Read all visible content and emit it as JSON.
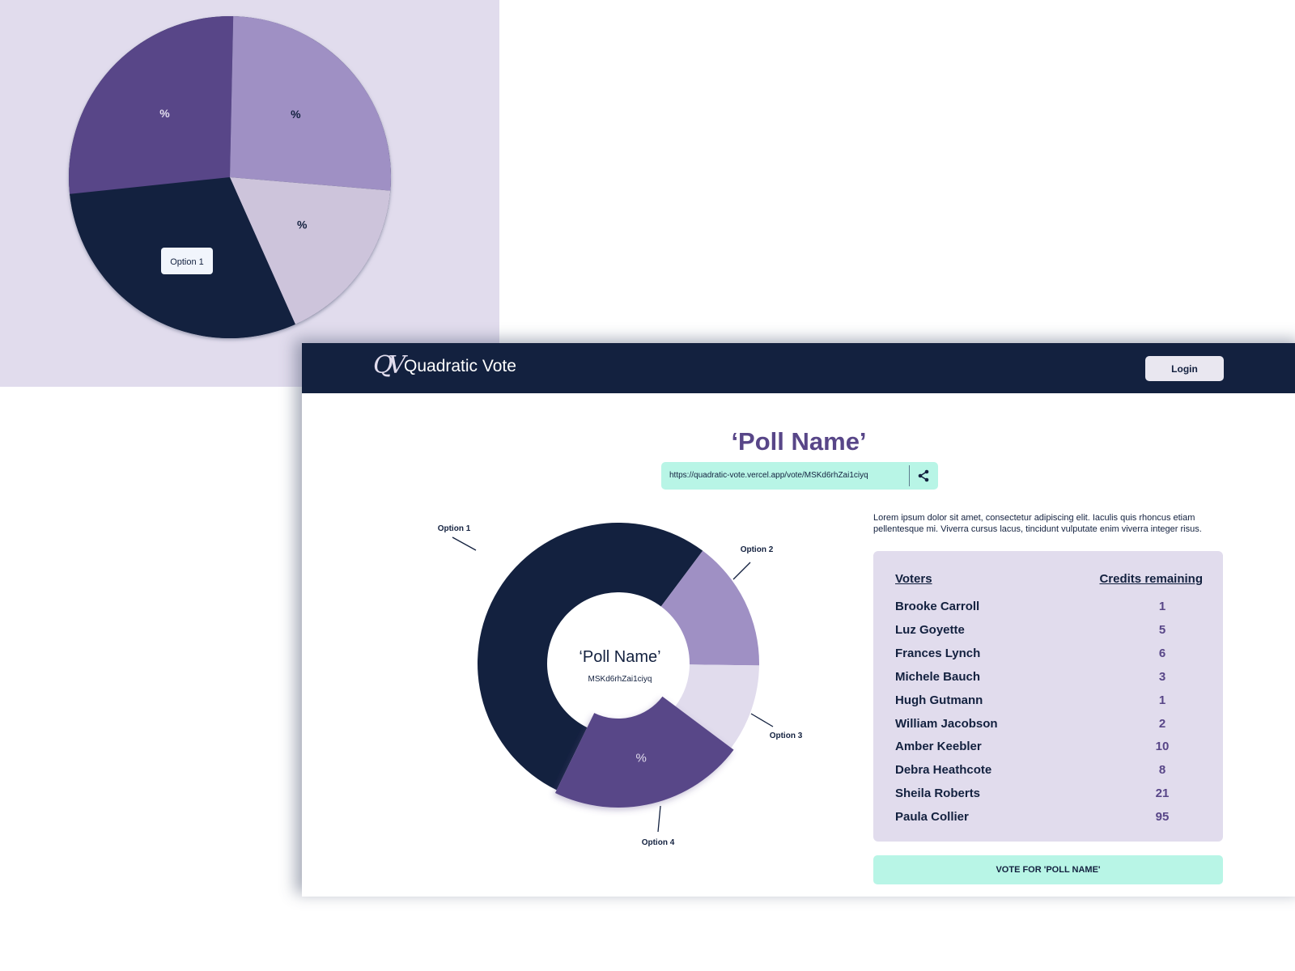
{
  "colors": {
    "dark": "#13213f",
    "purple": "#584688",
    "lavender": "#9f90c4",
    "pale": "#cdc4db",
    "light": "#e1dced",
    "mint": "#b8f5e6"
  },
  "header": {
    "logo": "QV",
    "brand": "Quadratic Vote",
    "login_label": "Login"
  },
  "poll": {
    "title": "‘Poll Name’",
    "url": "https://quadratic-vote.vercel.app/vote/MSKd6rhZai1ciyq",
    "share_icon": "share-icon",
    "id": "MSKd6rhZai1ciyq"
  },
  "description": "Lorem ipsum dolor sit amet, consectetur adipiscing elit. Iaculis quis rhoncus etiam pellentesque mi. Viverra cursus lacus, tincidunt vulputate enim viverra integer risus.",
  "voters": {
    "header_name": "Voters",
    "header_credits": "Credits remaining",
    "rows": [
      {
        "name": "Brooke Carroll",
        "credits": "1"
      },
      {
        "name": "Luz Goyette",
        "credits": "5"
      },
      {
        "name": "Frances Lynch",
        "credits": "6"
      },
      {
        "name": "Michele Bauch",
        "credits": "3"
      },
      {
        "name": "Hugh Gutmann",
        "credits": "1"
      },
      {
        "name": "William Jacobson",
        "credits": "2"
      },
      {
        "name": "Amber Keebler",
        "credits": "10"
      },
      {
        "name": "Debra Heathcote",
        "credits": "8"
      },
      {
        "name": "Sheila Roberts",
        "credits": "21"
      },
      {
        "name": "Paula Collier",
        "credits": "95"
      }
    ]
  },
  "vote_label": "VOTE FOR 'POLL NAME'",
  "chart_data": [
    {
      "type": "pie",
      "title": "",
      "slice_label": "%",
      "tooltip": "Option 1",
      "slices": [
        {
          "name": "Option 1",
          "value": 30,
          "color": "#13213f"
        },
        {
          "name": "Option 4",
          "value": 27,
          "color": "#584688"
        },
        {
          "name": "Option 2",
          "value": 26,
          "color": "#9f90c4"
        },
        {
          "name": "Option 3",
          "value": 17,
          "color": "#cdc4db"
        }
      ]
    },
    {
      "type": "pie",
      "donut": true,
      "center_title": "‘Poll Name’",
      "center_subtitle": "MSKd6rhZai1ciyq",
      "slice_label": "%",
      "slices": [
        {
          "name": "Option 1",
          "value": 53,
          "color": "#13213f"
        },
        {
          "name": "Option 2",
          "value": 15,
          "color": "#9f90c4"
        },
        {
          "name": "Option 3",
          "value": 10,
          "color": "#e1dced"
        },
        {
          "name": "Option 4",
          "value": 22,
          "color": "#584688",
          "highlighted": true
        }
      ]
    }
  ]
}
